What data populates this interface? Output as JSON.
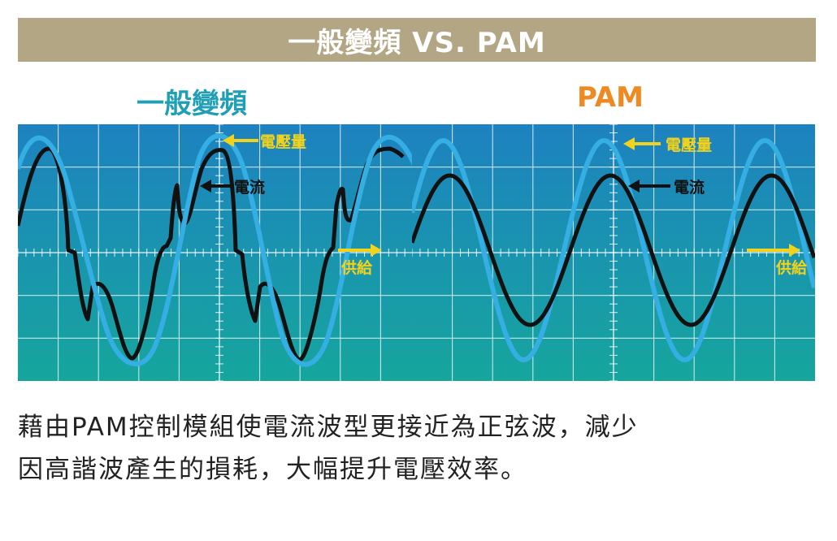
{
  "header": {
    "title": "一般變頻 VS. PAM"
  },
  "panels": [
    {
      "title": "一般變頻",
      "label_voltage": "電壓量",
      "label_current": "電流",
      "label_supply": "供給"
    },
    {
      "title": "PAM",
      "label_voltage": "電壓量",
      "label_current": "電流",
      "label_supply": "供給"
    }
  ],
  "caption": {
    "line1": "藉由PAM控制模組使電流波型更接近為正弦波，減少",
    "line2": "因高諧波產生的損耗，大幅提升電壓效率。"
  },
  "colors": {
    "banner_bg": "#b3a684",
    "title_left": "#1e9fb6",
    "title_right": "#ee8a22",
    "scope_top": "#1d82c0",
    "scope_bottom": "#16a69d",
    "voltage_wave": "#35aee3",
    "current_wave": "#111111",
    "arrow_label": "#f2d21a"
  }
}
